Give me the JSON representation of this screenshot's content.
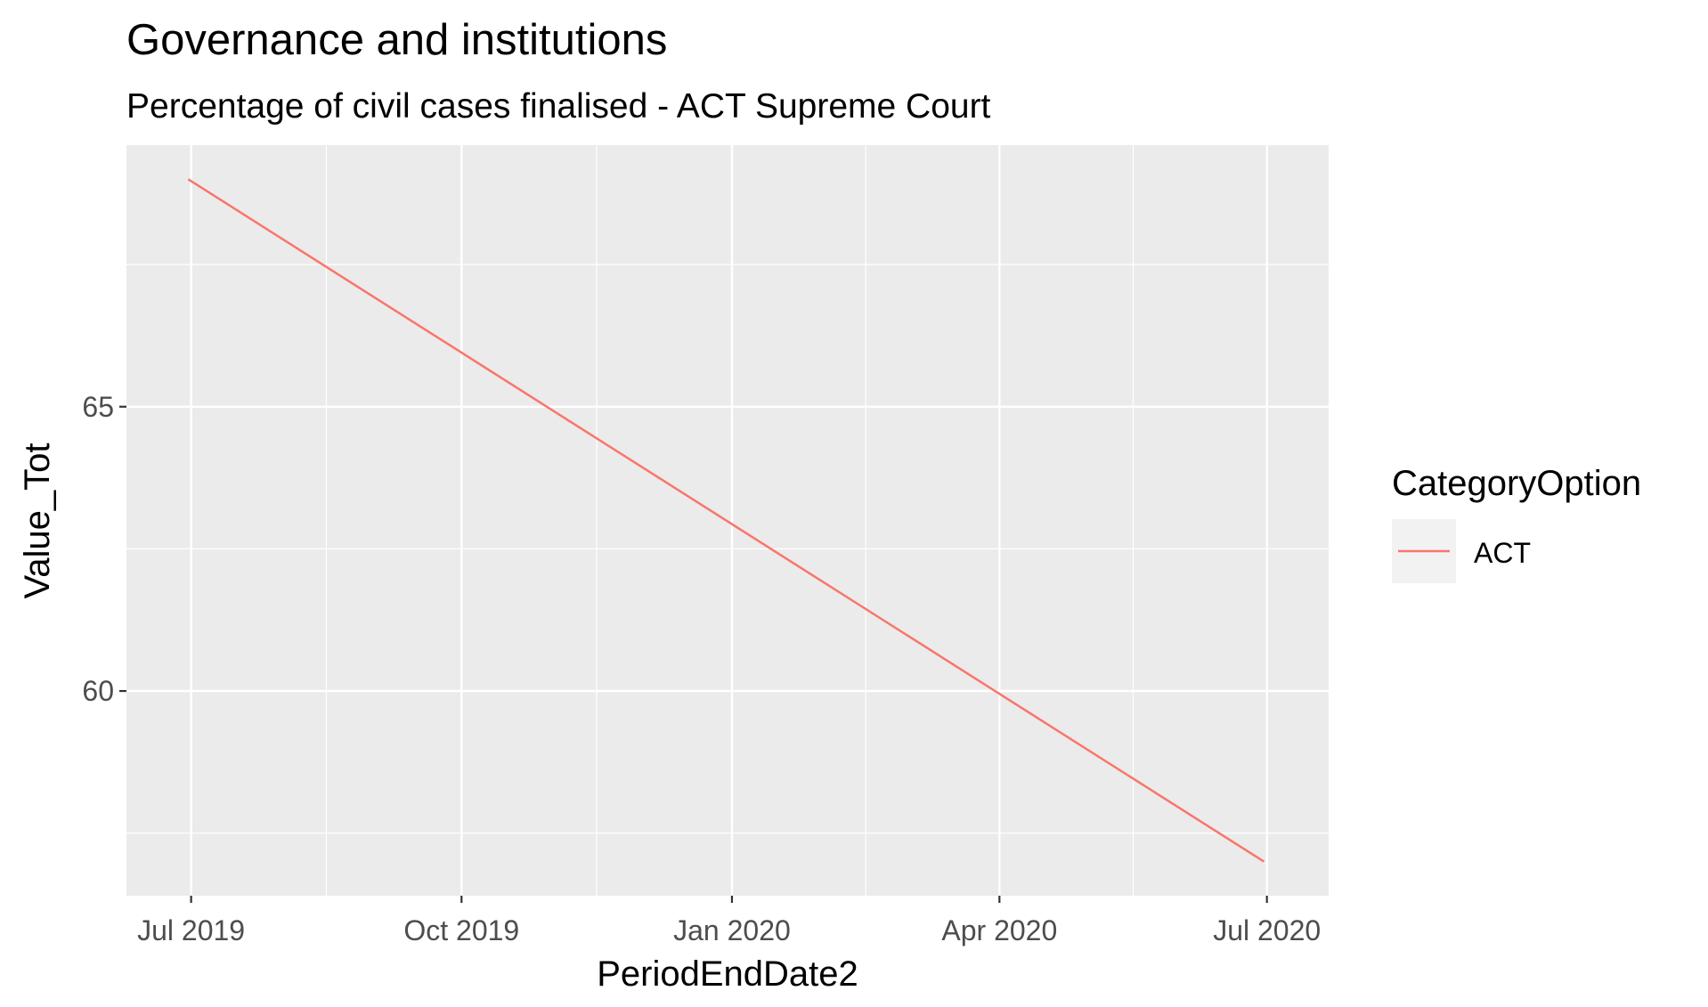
{
  "chart_data": {
    "type": "line",
    "title": "Governance and institutions",
    "subtitle": "Percentage of civil cases finalised - ACT Supreme Court",
    "xlabel": "PeriodEndDate2",
    "ylabel": "Value_Tot",
    "x_ticks": [
      "Jul 2019",
      "Oct 2019",
      "Jan 2020",
      "Apr 2020",
      "Jul 2020"
    ],
    "y_ticks": [
      60,
      65
    ],
    "ylim": [
      56.4,
      69.6
    ],
    "xlim": [
      "2019-06-09",
      "2020-07-22"
    ],
    "grid": true,
    "legend": {
      "title": "CategoryOption",
      "position": "right"
    },
    "series": [
      {
        "name": "ACT",
        "color": "#F8766D",
        "points": [
          {
            "x": "2019-06-30",
            "y": 69
          },
          {
            "x": "2020-06-30",
            "y": 57
          }
        ]
      }
    ]
  }
}
